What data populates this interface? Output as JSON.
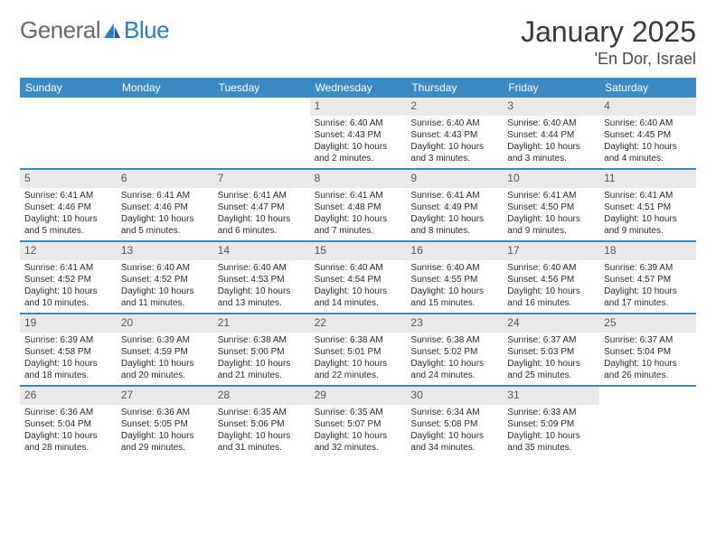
{
  "brand": {
    "word1": "General",
    "word2": "Blue"
  },
  "title": {
    "month": "January 2025",
    "location": "'En Dor, Israel"
  },
  "colors": {
    "header_bg": "#3b8ac4",
    "header_text": "#ffffff",
    "band_bg": "#e9e9e9",
    "rule": "#3b8ac4",
    "logo_grey": "#6b6b6b",
    "logo_blue": "#2f7bbf"
  },
  "daynames": [
    "Sunday",
    "Monday",
    "Tuesday",
    "Wednesday",
    "Thursday",
    "Friday",
    "Saturday"
  ],
  "weeks": [
    [
      {
        "n": "",
        "empty": true
      },
      {
        "n": "",
        "empty": true
      },
      {
        "n": "",
        "empty": true
      },
      {
        "n": "1",
        "sunrise": "6:40 AM",
        "sunset": "4:43 PM",
        "daylight": "10 hours and 2 minutes."
      },
      {
        "n": "2",
        "sunrise": "6:40 AM",
        "sunset": "4:43 PM",
        "daylight": "10 hours and 3 minutes."
      },
      {
        "n": "3",
        "sunrise": "6:40 AM",
        "sunset": "4:44 PM",
        "daylight": "10 hours and 3 minutes."
      },
      {
        "n": "4",
        "sunrise": "6:40 AM",
        "sunset": "4:45 PM",
        "daylight": "10 hours and 4 minutes."
      }
    ],
    [
      {
        "n": "5",
        "sunrise": "6:41 AM",
        "sunset": "4:46 PM",
        "daylight": "10 hours and 5 minutes."
      },
      {
        "n": "6",
        "sunrise": "6:41 AM",
        "sunset": "4:46 PM",
        "daylight": "10 hours and 5 minutes."
      },
      {
        "n": "7",
        "sunrise": "6:41 AM",
        "sunset": "4:47 PM",
        "daylight": "10 hours and 6 minutes."
      },
      {
        "n": "8",
        "sunrise": "6:41 AM",
        "sunset": "4:48 PM",
        "daylight": "10 hours and 7 minutes."
      },
      {
        "n": "9",
        "sunrise": "6:41 AM",
        "sunset": "4:49 PM",
        "daylight": "10 hours and 8 minutes."
      },
      {
        "n": "10",
        "sunrise": "6:41 AM",
        "sunset": "4:50 PM",
        "daylight": "10 hours and 9 minutes."
      },
      {
        "n": "11",
        "sunrise": "6:41 AM",
        "sunset": "4:51 PM",
        "daylight": "10 hours and 9 minutes."
      }
    ],
    [
      {
        "n": "12",
        "sunrise": "6:41 AM",
        "sunset": "4:52 PM",
        "daylight": "10 hours and 10 minutes."
      },
      {
        "n": "13",
        "sunrise": "6:40 AM",
        "sunset": "4:52 PM",
        "daylight": "10 hours and 11 minutes."
      },
      {
        "n": "14",
        "sunrise": "6:40 AM",
        "sunset": "4:53 PM",
        "daylight": "10 hours and 13 minutes."
      },
      {
        "n": "15",
        "sunrise": "6:40 AM",
        "sunset": "4:54 PM",
        "daylight": "10 hours and 14 minutes."
      },
      {
        "n": "16",
        "sunrise": "6:40 AM",
        "sunset": "4:55 PM",
        "daylight": "10 hours and 15 minutes."
      },
      {
        "n": "17",
        "sunrise": "6:40 AM",
        "sunset": "4:56 PM",
        "daylight": "10 hours and 16 minutes."
      },
      {
        "n": "18",
        "sunrise": "6:39 AM",
        "sunset": "4:57 PM",
        "daylight": "10 hours and 17 minutes."
      }
    ],
    [
      {
        "n": "19",
        "sunrise": "6:39 AM",
        "sunset": "4:58 PM",
        "daylight": "10 hours and 18 minutes."
      },
      {
        "n": "20",
        "sunrise": "6:39 AM",
        "sunset": "4:59 PM",
        "daylight": "10 hours and 20 minutes."
      },
      {
        "n": "21",
        "sunrise": "6:38 AM",
        "sunset": "5:00 PM",
        "daylight": "10 hours and 21 minutes."
      },
      {
        "n": "22",
        "sunrise": "6:38 AM",
        "sunset": "5:01 PM",
        "daylight": "10 hours and 22 minutes."
      },
      {
        "n": "23",
        "sunrise": "6:38 AM",
        "sunset": "5:02 PM",
        "daylight": "10 hours and 24 minutes."
      },
      {
        "n": "24",
        "sunrise": "6:37 AM",
        "sunset": "5:03 PM",
        "daylight": "10 hours and 25 minutes."
      },
      {
        "n": "25",
        "sunrise": "6:37 AM",
        "sunset": "5:04 PM",
        "daylight": "10 hours and 26 minutes."
      }
    ],
    [
      {
        "n": "26",
        "sunrise": "6:36 AM",
        "sunset": "5:04 PM",
        "daylight": "10 hours and 28 minutes."
      },
      {
        "n": "27",
        "sunrise": "6:36 AM",
        "sunset": "5:05 PM",
        "daylight": "10 hours and 29 minutes."
      },
      {
        "n": "28",
        "sunrise": "6:35 AM",
        "sunset": "5:06 PM",
        "daylight": "10 hours and 31 minutes."
      },
      {
        "n": "29",
        "sunrise": "6:35 AM",
        "sunset": "5:07 PM",
        "daylight": "10 hours and 32 minutes."
      },
      {
        "n": "30",
        "sunrise": "6:34 AM",
        "sunset": "5:08 PM",
        "daylight": "10 hours and 34 minutes."
      },
      {
        "n": "31",
        "sunrise": "6:33 AM",
        "sunset": "5:09 PM",
        "daylight": "10 hours and 35 minutes."
      },
      {
        "n": "",
        "empty": true
      }
    ]
  ],
  "labels": {
    "sunrise": "Sunrise: ",
    "sunset": "Sunset: ",
    "daylight": "Daylight: "
  }
}
